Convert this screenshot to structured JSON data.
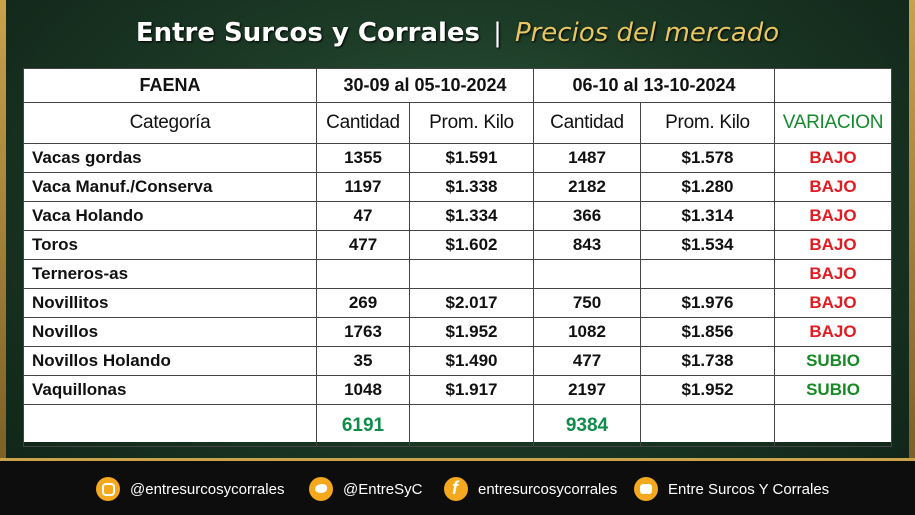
{
  "header": {
    "title": "Entre Surcos y Corrales",
    "separator": "|",
    "subtitle": "Precios del mercado"
  },
  "table": {
    "head": {
      "faena": "FAENA",
      "period1": "30-09 al 05-10-2024",
      "period2": "06-10 al 13-10-2024"
    },
    "columns": {
      "categoria": "Categoría",
      "cantidad": "Cantidad",
      "prom_kilo": "Prom. Kilo",
      "variacion": "VARIACION"
    },
    "rows": [
      {
        "categoria": "Vacas gordas",
        "cant1": "1355",
        "kilo1": "$1.591",
        "cant2": "1487",
        "kilo2": "$1.578",
        "variacion": "BAJO",
        "trend": "down"
      },
      {
        "categoria": "Vaca Manuf./Conserva",
        "cant1": "1197",
        "kilo1": "$1.338",
        "cant2": "2182",
        "kilo2": "$1.280",
        "variacion": "BAJO",
        "trend": "down"
      },
      {
        "categoria": "Vaca Holando",
        "cant1": "47",
        "kilo1": "$1.334",
        "cant2": "366",
        "kilo2": "$1.314",
        "variacion": "BAJO",
        "trend": "down"
      },
      {
        "categoria": "Toros",
        "cant1": "477",
        "kilo1": "$1.602",
        "cant2": "843",
        "kilo2": "$1.534",
        "variacion": "BAJO",
        "trend": "down"
      },
      {
        "categoria": "Terneros-as",
        "cant1": "",
        "kilo1": "",
        "cant2": "",
        "kilo2": "",
        "variacion": "BAJO",
        "trend": "down"
      },
      {
        "categoria": "Novillitos",
        "cant1": "269",
        "kilo1": "$2.017",
        "cant2": "750",
        "kilo2": "$1.976",
        "variacion": "BAJO",
        "trend": "down"
      },
      {
        "categoria": "Novillos",
        "cant1": "1763",
        "kilo1": "$1.952",
        "cant2": "1082",
        "kilo2": "$1.856",
        "variacion": "BAJO",
        "trend": "down"
      },
      {
        "categoria": "Novillos Holando",
        "cant1": "35",
        "kilo1": "$1.490",
        "cant2": "477",
        "kilo2": "$1.738",
        "variacion": "SUBIO",
        "trend": "up"
      },
      {
        "categoria": "Vaquillonas",
        "cant1": "1048",
        "kilo1": "$1.917",
        "cant2": "2197",
        "kilo2": "$1.952",
        "variacion": "SUBIO",
        "trend": "up"
      }
    ],
    "totals": {
      "cant1": "6191",
      "cant2": "9384"
    }
  },
  "footer": {
    "instagram": "@entresurcosycorrales",
    "twitter": "@EntreSyC",
    "facebook": "entresurcosycorrales",
    "youtube": "Entre Surcos Y Corrales"
  },
  "icons": [
    "instagram-icon",
    "twitter-icon",
    "facebook-icon",
    "youtube-icon"
  ],
  "colors": {
    "bajo": "#e11b22",
    "subio": "#178a25",
    "total": "#0f8c4a",
    "accent_gold": "#e9c760"
  }
}
